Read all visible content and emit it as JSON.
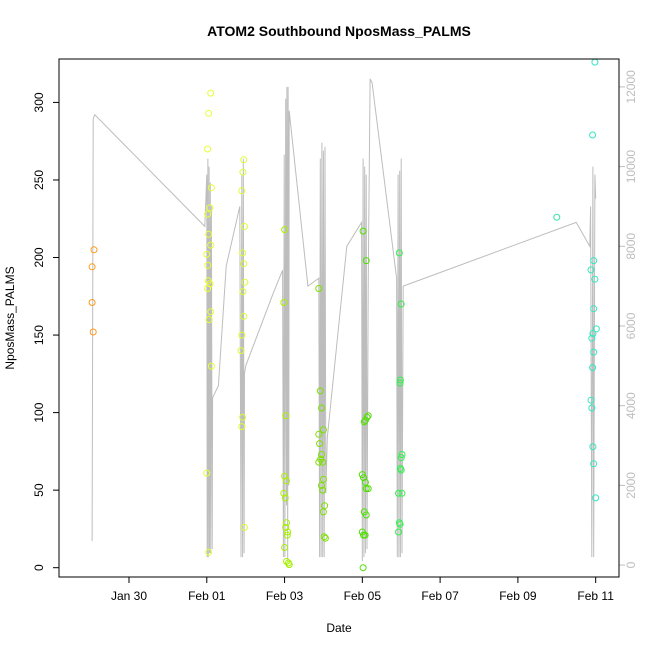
{
  "chart_data": {
    "type": "scatter",
    "title": "ATOM2 Southbound NposMass_PALMS",
    "xlabel": "Date",
    "ylabel": "NposMass_PALMS",
    "x_ticks": [
      "Jan 30",
      "Feb 01",
      "Feb 03",
      "Feb 05",
      "Feb 07",
      "Feb 09",
      "Feb 11"
    ],
    "x_tick_days": [
      30,
      32,
      34,
      36,
      38,
      40,
      42
    ],
    "xlim": [
      28.2,
      42.6
    ],
    "ylim": [
      -6,
      328
    ],
    "y_ticks": [
      0,
      50,
      100,
      150,
      200,
      250,
      300
    ],
    "y2lim": [
      -300,
      12700
    ],
    "y2_ticks": [
      0,
      2000,
      4000,
      6000,
      8000,
      10000,
      12000
    ],
    "secondary_line_color": "#bdbdbd",
    "points": [
      {
        "x": 29.1,
        "y": 205,
        "color": "#ff9a1a"
      },
      {
        "x": 29.05,
        "y": 194,
        "color": "#ff9a1a"
      },
      {
        "x": 29.05,
        "y": 171,
        "color": "#ff9a1a"
      },
      {
        "x": 29.08,
        "y": 152,
        "color": "#ff9a1a"
      },
      {
        "x": 32.1,
        "y": 306,
        "color": "#e9ff33"
      },
      {
        "x": 32.05,
        "y": 293,
        "color": "#e9ff33"
      },
      {
        "x": 32.02,
        "y": 270,
        "color": "#e9ff33"
      },
      {
        "x": 32.12,
        "y": 245,
        "color": "#e9ff33"
      },
      {
        "x": 32.08,
        "y": 232,
        "color": "#e9ff33"
      },
      {
        "x": 32.02,
        "y": 228,
        "color": "#e9ff33"
      },
      {
        "x": 32.05,
        "y": 215,
        "color": "#e9ff33"
      },
      {
        "x": 32.1,
        "y": 208,
        "color": "#e9ff33"
      },
      {
        "x": 32.0,
        "y": 202,
        "color": "#e9ff33"
      },
      {
        "x": 32.03,
        "y": 195,
        "color": "#e9ff33"
      },
      {
        "x": 32.04,
        "y": 185,
        "color": "#e9ff33"
      },
      {
        "x": 32.08,
        "y": 183,
        "color": "#e9ff33"
      },
      {
        "x": 32.02,
        "y": 180,
        "color": "#e9ff33"
      },
      {
        "x": 32.1,
        "y": 165,
        "color": "#e9ff33"
      },
      {
        "x": 32.06,
        "y": 160,
        "color": "#e9ff33"
      },
      {
        "x": 32.12,
        "y": 130,
        "color": "#e9ff33"
      },
      {
        "x": 32.0,
        "y": 61,
        "color": "#e9ff33"
      },
      {
        "x": 32.05,
        "y": 10,
        "color": "#e9ff33"
      },
      {
        "x": 32.95,
        "y": 263,
        "color": "#d8ff33"
      },
      {
        "x": 32.93,
        "y": 255,
        "color": "#d8ff33"
      },
      {
        "x": 32.9,
        "y": 243,
        "color": "#d8ff33"
      },
      {
        "x": 32.97,
        "y": 220,
        "color": "#d8ff33"
      },
      {
        "x": 32.92,
        "y": 203,
        "color": "#d8ff33"
      },
      {
        "x": 32.95,
        "y": 196,
        "color": "#d8ff33"
      },
      {
        "x": 32.98,
        "y": 184,
        "color": "#d8ff33"
      },
      {
        "x": 32.93,
        "y": 178,
        "color": "#d8ff33"
      },
      {
        "x": 32.95,
        "y": 162,
        "color": "#d8ff33"
      },
      {
        "x": 32.9,
        "y": 150,
        "color": "#d8ff33"
      },
      {
        "x": 32.88,
        "y": 140,
        "color": "#d8ff33"
      },
      {
        "x": 32.92,
        "y": 97,
        "color": "#d8ff33"
      },
      {
        "x": 32.9,
        "y": 91,
        "color": "#d8ff33"
      },
      {
        "x": 32.97,
        "y": 26,
        "color": "#d8ff33"
      },
      {
        "x": 34.0,
        "y": 218,
        "color": "#a8f000"
      },
      {
        "x": 33.98,
        "y": 171,
        "color": "#a8f000"
      },
      {
        "x": 34.03,
        "y": 98,
        "color": "#a8f000"
      },
      {
        "x": 34.0,
        "y": 59,
        "color": "#a8f000"
      },
      {
        "x": 34.05,
        "y": 56,
        "color": "#a8f000"
      },
      {
        "x": 33.98,
        "y": 48,
        "color": "#a8f000"
      },
      {
        "x": 34.02,
        "y": 45,
        "color": "#a8f000"
      },
      {
        "x": 34.05,
        "y": 29,
        "color": "#a8f000"
      },
      {
        "x": 34.03,
        "y": 26,
        "color": "#a8f000"
      },
      {
        "x": 34.08,
        "y": 23,
        "color": "#a8f000"
      },
      {
        "x": 34.07,
        "y": 21,
        "color": "#a8f000"
      },
      {
        "x": 34.0,
        "y": 13,
        "color": "#a8f000"
      },
      {
        "x": 34.05,
        "y": 4,
        "color": "#a8f000"
      },
      {
        "x": 34.1,
        "y": 3,
        "color": "#a8f000"
      },
      {
        "x": 34.12,
        "y": 2,
        "color": "#a8f000"
      },
      {
        "x": 34.88,
        "y": 180,
        "color": "#7de000"
      },
      {
        "x": 34.92,
        "y": 114,
        "color": "#7de000"
      },
      {
        "x": 34.95,
        "y": 103,
        "color": "#7de000"
      },
      {
        "x": 35.0,
        "y": 89,
        "color": "#7de000"
      },
      {
        "x": 34.88,
        "y": 86,
        "color": "#7de000"
      },
      {
        "x": 34.9,
        "y": 80,
        "color": "#7de000"
      },
      {
        "x": 34.95,
        "y": 73,
        "color": "#7de000"
      },
      {
        "x": 34.93,
        "y": 70,
        "color": "#7de000"
      },
      {
        "x": 34.98,
        "y": 68,
        "color": "#7de000"
      },
      {
        "x": 34.88,
        "y": 68,
        "color": "#7de000"
      },
      {
        "x": 35.0,
        "y": 57,
        "color": "#7de000"
      },
      {
        "x": 34.95,
        "y": 53,
        "color": "#7de000"
      },
      {
        "x": 34.98,
        "y": 50,
        "color": "#7de000"
      },
      {
        "x": 35.03,
        "y": 40,
        "color": "#7de000"
      },
      {
        "x": 35.0,
        "y": 36,
        "color": "#7de000"
      },
      {
        "x": 35.02,
        "y": 20,
        "color": "#7de000"
      },
      {
        "x": 35.05,
        "y": 19,
        "color": "#7de000"
      },
      {
        "x": 36.02,
        "y": 217,
        "color": "#4fe000"
      },
      {
        "x": 36.1,
        "y": 198,
        "color": "#4fe000"
      },
      {
        "x": 36.15,
        "y": 98,
        "color": "#4fe000"
      },
      {
        "x": 36.12,
        "y": 97,
        "color": "#4fe000"
      },
      {
        "x": 36.08,
        "y": 95,
        "color": "#4fe000"
      },
      {
        "x": 36.05,
        "y": 94,
        "color": "#4fe000"
      },
      {
        "x": 36.0,
        "y": 60,
        "color": "#4fe000"
      },
      {
        "x": 36.03,
        "y": 58,
        "color": "#4fe000"
      },
      {
        "x": 36.08,
        "y": 55,
        "color": "#4fe000"
      },
      {
        "x": 36.1,
        "y": 51,
        "color": "#4fe000"
      },
      {
        "x": 36.15,
        "y": 51,
        "color": "#4fe000"
      },
      {
        "x": 36.05,
        "y": 36,
        "color": "#4fe000"
      },
      {
        "x": 36.1,
        "y": 34,
        "color": "#4fe000"
      },
      {
        "x": 36.0,
        "y": 23,
        "color": "#4fe000"
      },
      {
        "x": 36.03,
        "y": 21,
        "color": "#4fe000"
      },
      {
        "x": 36.07,
        "y": 21,
        "color": "#4fe000"
      },
      {
        "x": 36.02,
        "y": 0,
        "color": "#4fe000"
      },
      {
        "x": 36.95,
        "y": 203,
        "color": "#33f04d"
      },
      {
        "x": 37.0,
        "y": 170,
        "color": "#33f04d"
      },
      {
        "x": 36.98,
        "y": 121,
        "color": "#33f04d"
      },
      {
        "x": 36.97,
        "y": 119,
        "color": "#33f04d"
      },
      {
        "x": 37.02,
        "y": 73,
        "color": "#33f04d"
      },
      {
        "x": 37.0,
        "y": 71,
        "color": "#33f04d"
      },
      {
        "x": 36.98,
        "y": 64,
        "color": "#33f04d"
      },
      {
        "x": 37.0,
        "y": 63,
        "color": "#33f04d"
      },
      {
        "x": 36.93,
        "y": 48,
        "color": "#33f04d"
      },
      {
        "x": 37.02,
        "y": 48,
        "color": "#33f04d"
      },
      {
        "x": 36.95,
        "y": 29,
        "color": "#33f04d"
      },
      {
        "x": 36.97,
        "y": 28,
        "color": "#33f04d"
      },
      {
        "x": 36.93,
        "y": 23,
        "color": "#33f04d"
      },
      {
        "x": 41.0,
        "y": 226,
        "color": "#33e0a0"
      },
      {
        "x": 41.98,
        "y": 326,
        "color": "#33e8c0"
      },
      {
        "x": 41.92,
        "y": 279,
        "color": "#33e8c0"
      },
      {
        "x": 41.95,
        "y": 198,
        "color": "#33e8c0"
      },
      {
        "x": 41.88,
        "y": 192,
        "color": "#33e8c0"
      },
      {
        "x": 41.98,
        "y": 186,
        "color": "#33e8c0"
      },
      {
        "x": 41.95,
        "y": 167,
        "color": "#33e8c0"
      },
      {
        "x": 42.02,
        "y": 154,
        "color": "#33e8c0"
      },
      {
        "x": 41.93,
        "y": 151,
        "color": "#33e8c0"
      },
      {
        "x": 41.9,
        "y": 148,
        "color": "#33e8c0"
      },
      {
        "x": 41.95,
        "y": 139,
        "color": "#33e8c0"
      },
      {
        "x": 41.92,
        "y": 129,
        "color": "#33e8c0"
      },
      {
        "x": 41.88,
        "y": 108,
        "color": "#33e8c0"
      },
      {
        "x": 41.9,
        "y": 103,
        "color": "#33e8c0"
      },
      {
        "x": 41.93,
        "y": 78,
        "color": "#33e8c0"
      },
      {
        "x": 41.95,
        "y": 67,
        "color": "#33e8c0"
      },
      {
        "x": 42.0,
        "y": 45,
        "color": "#33e8c0"
      }
    ],
    "secondary_line": [
      [
        29.05,
        600
      ],
      [
        29.08,
        11200
      ],
      [
        29.12,
        11300
      ],
      [
        31.95,
        8500
      ],
      [
        32.0,
        9800
      ],
      [
        32.01,
        200
      ],
      [
        32.03,
        10200
      ],
      [
        32.04,
        200
      ],
      [
        32.06,
        10000
      ],
      [
        32.07,
        300
      ],
      [
        32.09,
        9600
      ],
      [
        32.1,
        300
      ],
      [
        32.12,
        9000
      ],
      [
        32.14,
        400
      ],
      [
        32.15,
        4200
      ],
      [
        32.3,
        4500
      ],
      [
        32.5,
        7500
      ],
      [
        32.85,
        9000
      ],
      [
        32.88,
        200
      ],
      [
        32.9,
        9800
      ],
      [
        32.92,
        200
      ],
      [
        32.94,
        10200
      ],
      [
        32.96,
        300
      ],
      [
        32.97,
        4800
      ],
      [
        33.0,
        5000
      ],
      [
        33.7,
        6800
      ],
      [
        33.95,
        7400
      ],
      [
        33.97,
        200
      ],
      [
        33.99,
        10300
      ],
      [
        34.01,
        200
      ],
      [
        34.03,
        11700
      ],
      [
        34.05,
        1500
      ],
      [
        34.06,
        12000
      ],
      [
        34.08,
        100
      ],
      [
        34.09,
        12000
      ],
      [
        34.11,
        2000
      ],
      [
        34.12,
        11400
      ],
      [
        34.6,
        7000
      ],
      [
        34.88,
        7200
      ],
      [
        34.9,
        200
      ],
      [
        34.92,
        10200
      ],
      [
        34.94,
        200
      ],
      [
        34.96,
        10600
      ],
      [
        34.98,
        200
      ],
      [
        35.0,
        10400
      ],
      [
        35.02,
        200
      ],
      [
        35.04,
        10500
      ],
      [
        35.06,
        1800
      ],
      [
        35.1,
        3200
      ],
      [
        35.6,
        8000
      ],
      [
        35.98,
        8600
      ],
      [
        36.0,
        100
      ],
      [
        36.02,
        10200
      ],
      [
        36.04,
        200
      ],
      [
        36.06,
        10000
      ],
      [
        36.08,
        300
      ],
      [
        36.1,
        9800
      ],
      [
        36.12,
        400
      ],
      [
        36.15,
        7000
      ],
      [
        36.2,
        12200
      ],
      [
        36.25,
        12100
      ],
      [
        36.88,
        7200
      ],
      [
        36.9,
        200
      ],
      [
        36.92,
        9800
      ],
      [
        36.94,
        200
      ],
      [
        36.96,
        9900
      ],
      [
        36.98,
        200
      ],
      [
        37.0,
        10200
      ],
      [
        37.02,
        300
      ],
      [
        37.05,
        7000
      ],
      [
        41.5,
        8600
      ],
      [
        41.85,
        8000
      ],
      [
        41.87,
        9000
      ],
      [
        41.9,
        200
      ],
      [
        41.93,
        10000
      ],
      [
        41.95,
        200
      ],
      [
        41.98,
        9800
      ],
      [
        42.0,
        9200
      ]
    ]
  }
}
